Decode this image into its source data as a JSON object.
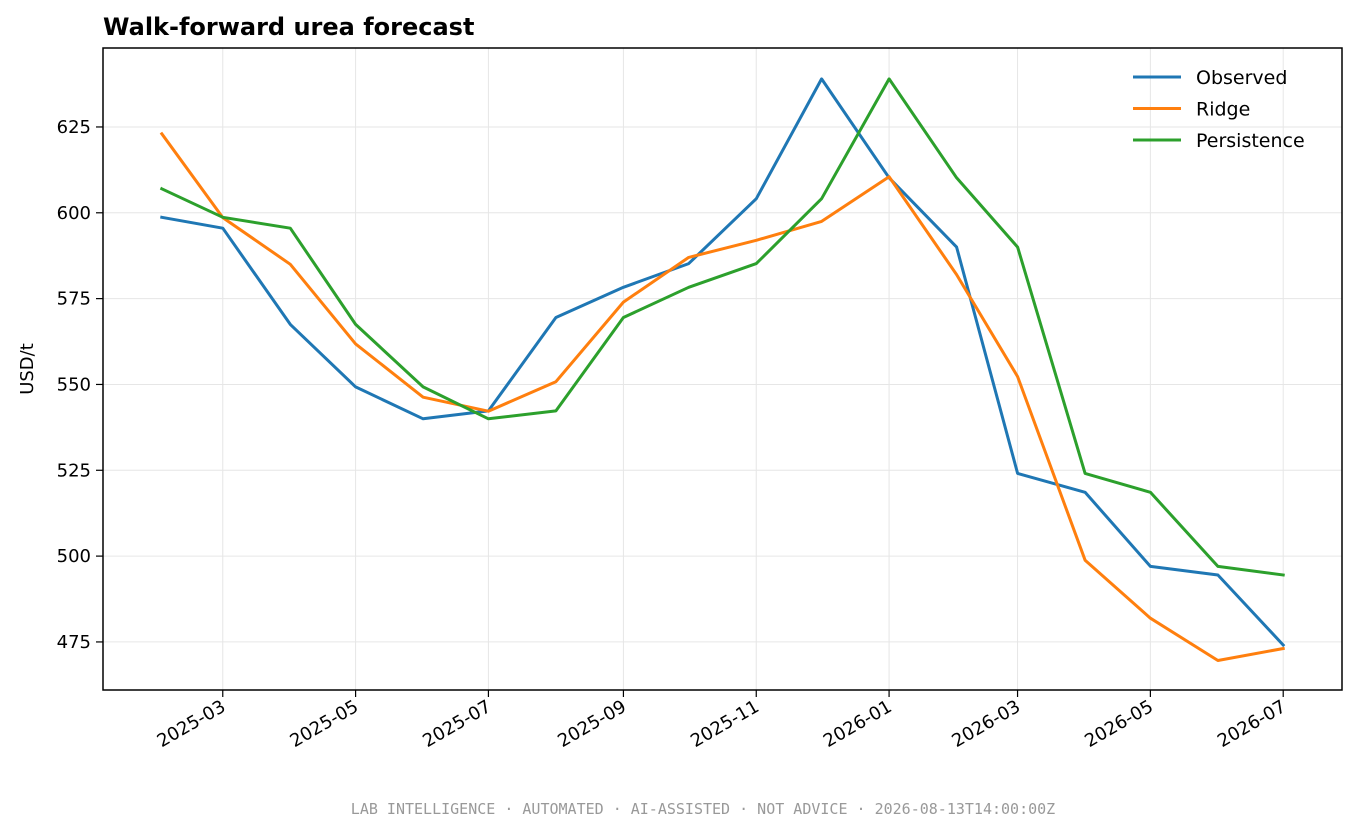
{
  "chart_data": {
    "type": "line",
    "title": "Walk-forward urea forecast",
    "xlabel": "",
    "ylabel": "USD/t",
    "x_tick_labels": [
      "2025-03",
      "2025-05",
      "2025-07",
      "2025-09",
      "2025-11",
      "2026-01",
      "2026-03",
      "2026-05",
      "2026-07"
    ],
    "y_ticks": [
      475,
      500,
      525,
      550,
      575,
      600,
      625
    ],
    "ylim": [
      461,
      648
    ],
    "xlim": [
      "2025-01-05",
      "2026-07-28"
    ],
    "x": [
      "2025-02",
      "2025-03",
      "2025-04",
      "2025-05",
      "2025-06",
      "2025-07",
      "2025-08",
      "2025-09",
      "2025-10",
      "2025-11",
      "2025-12",
      "2026-01",
      "2026-02",
      "2026-03",
      "2026-04",
      "2026-05",
      "2026-06",
      "2026-07"
    ],
    "series": [
      {
        "name": "Observed",
        "color": "#1f77b4",
        "values": [
          598.7,
          595.5,
          567.5,
          549.3,
          540.0,
          542.3,
          569.5,
          578.3,
          585.2,
          604.1,
          639.0,
          610.2,
          590.0,
          524.1,
          518.6,
          497.0,
          494.5,
          474.1
        ]
      },
      {
        "name": "Ridge",
        "color": "#ff7f0e",
        "values": [
          623.0,
          598.6,
          585.0,
          561.8,
          546.3,
          542.2,
          550.8,
          574.0,
          587.0,
          592.0,
          597.5,
          610.5,
          582.0,
          552.3,
          498.8,
          481.9,
          469.6,
          473.1
        ]
      },
      {
        "name": "Persistence",
        "color": "#2ca02c",
        "values": [
          607.0,
          598.7,
          595.5,
          567.5,
          549.3,
          540.0,
          542.3,
          569.5,
          578.3,
          585.2,
          604.1,
          639.0,
          610.2,
          590.0,
          524.1,
          518.6,
          497.0,
          494.5
        ]
      }
    ],
    "grid": true,
    "legend_position": "top-right"
  },
  "footer_text": "LAB INTELLIGENCE · AUTOMATED · AI-ASSISTED · NOT ADVICE · 2026-08-13T14:00:00Z"
}
